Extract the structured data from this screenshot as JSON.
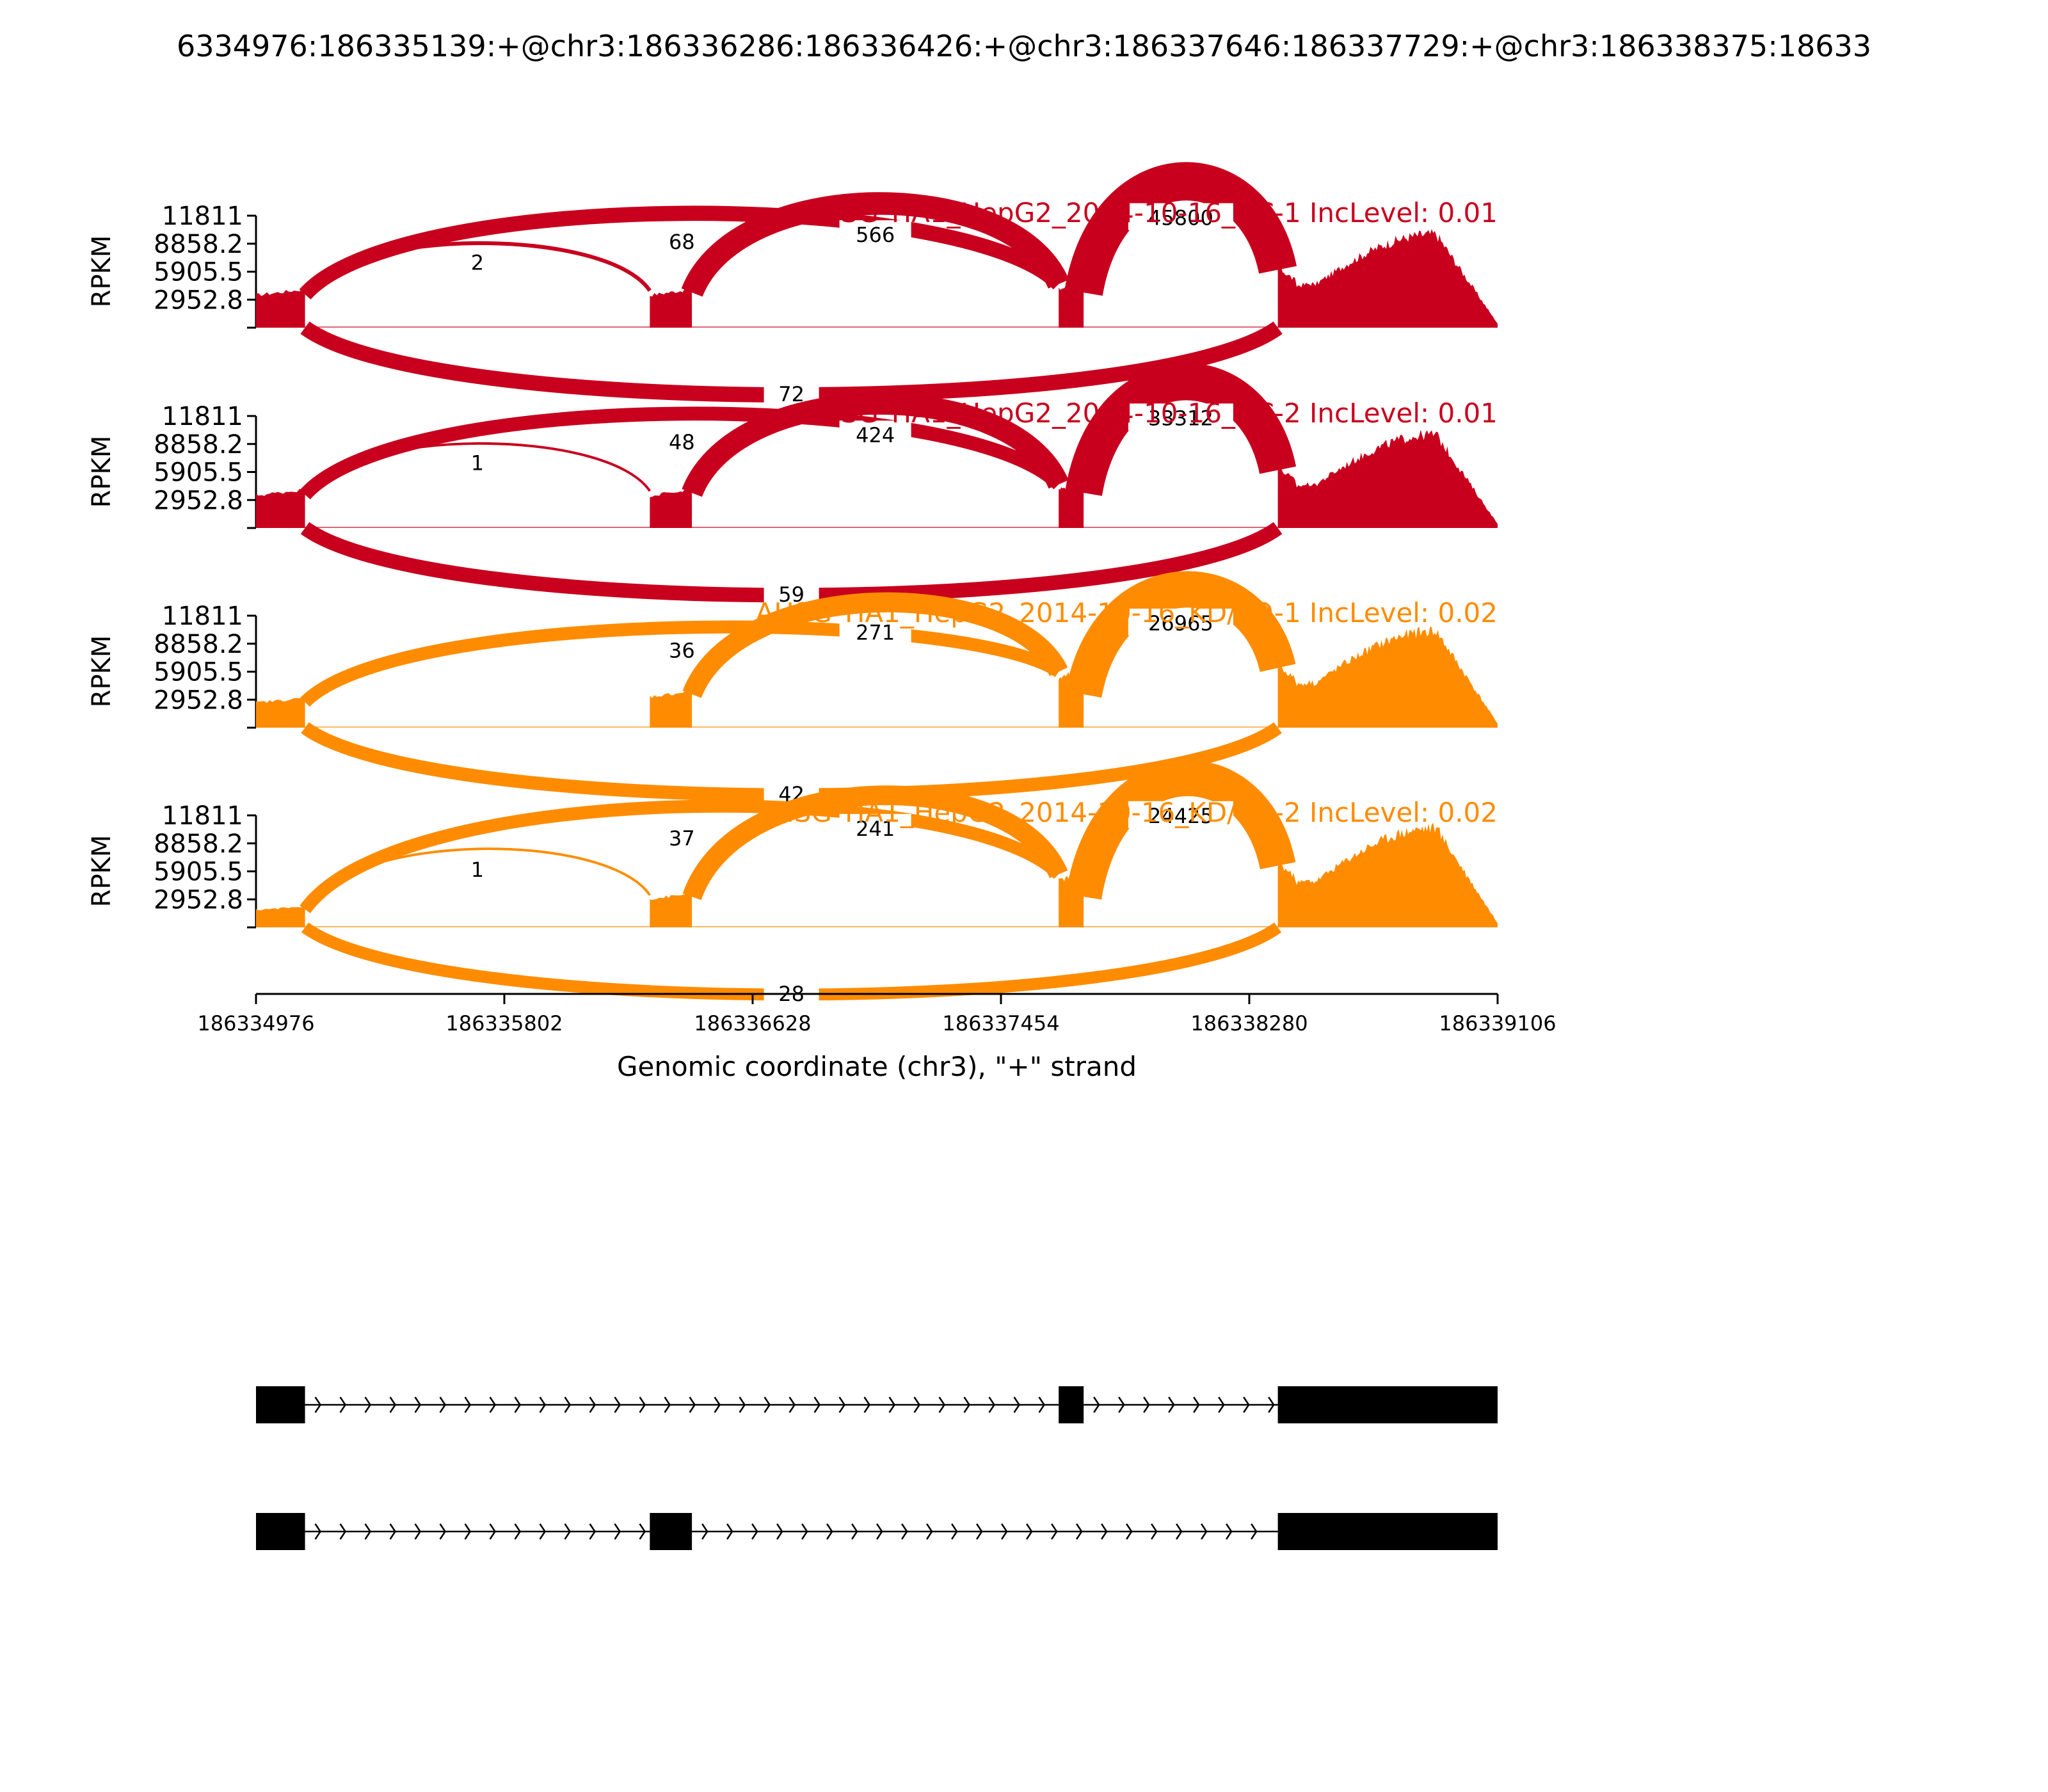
{
  "title": "6334976:186335139:+@chr3:186336286:186336426:+@chr3:186337646:186337729:+@chr3:186338375:18633",
  "chart_data": {
    "type": "sashimi",
    "xlabel": "Genomic coordinate (chr3), \"+\" strand",
    "xlim": [
      186334976,
      186339106
    ],
    "x_ticks": [
      "186334976",
      "186335802",
      "186336628",
      "186337454",
      "186338280",
      "186339106"
    ],
    "ylabel": "RPKM",
    "ylim": [
      0,
      11811
    ],
    "y_ticks": [
      "11811",
      "8858.2",
      "5905.5",
      "2952.8"
    ],
    "exons": [
      {
        "start": 186334976,
        "end": 186335139
      },
      {
        "start": 186336286,
        "end": 186336426
      },
      {
        "start": 186337646,
        "end": 186337729
      },
      {
        "start": 186338375,
        "end": 186339106
      }
    ],
    "series": [
      {
        "name": "AHSG TIA1_HepG2_2014-10-16_NC-1 IncLevel: 0.01",
        "color": "#c8001e",
        "exon_heights": [
          3900,
          3900,
          4600,
          6100
        ],
        "junctions": [
          {
            "from": 186335139,
            "to": 186336286,
            "count": "2",
            "side": "above"
          },
          {
            "from": 186335139,
            "to": 186337646,
            "count": "68",
            "side": "above"
          },
          {
            "from": 186336426,
            "to": 186337646,
            "count": "566",
            "side": "above"
          },
          {
            "from": 186337729,
            "to": 186338375,
            "count": "45800",
            "side": "above"
          },
          {
            "from": 186335139,
            "to": 186338375,
            "count": "72",
            "side": "below"
          }
        ]
      },
      {
        "name": "AHSG TIA1_HepG2_2014-10-16_NC-2 IncLevel: 0.01",
        "color": "#c8001e",
        "exon_heights": [
          3900,
          3900,
          4600,
          6100
        ],
        "junctions": [
          {
            "from": 186335139,
            "to": 186336286,
            "count": "1",
            "side": "above"
          },
          {
            "from": 186335139,
            "to": 186337646,
            "count": "48",
            "side": "above"
          },
          {
            "from": 186336426,
            "to": 186337646,
            "count": "424",
            "side": "above"
          },
          {
            "from": 186337729,
            "to": 186338375,
            "count": "33312",
            "side": "above"
          },
          {
            "from": 186335139,
            "to": 186338375,
            "count": "59",
            "side": "below"
          }
        ]
      },
      {
        "name": "AHSG TIA1_HepG2_2014-10-16_KD/KO-1 IncLevel: 0.02",
        "color": "#ff8c00",
        "exon_heights": [
          3000,
          3700,
          5900,
          6300
        ],
        "junctions": [
          {
            "from": 186335139,
            "to": 186337646,
            "count": "36",
            "side": "above"
          },
          {
            "from": 186336426,
            "to": 186337646,
            "count": "271",
            "side": "above"
          },
          {
            "from": 186337729,
            "to": 186338375,
            "count": "26965",
            "side": "above"
          },
          {
            "from": 186335139,
            "to": 186338375,
            "count": "42",
            "side": "below"
          }
        ]
      },
      {
        "name": "AHSG TIA1_HepG2_2014-10-16_KD/KO-2 IncLevel: 0.02",
        "color": "#ff8c00",
        "exon_heights": [
          2100,
          3400,
          5600,
          6500
        ],
        "junctions": [
          {
            "from": 186335139,
            "to": 186336286,
            "count": "1",
            "side": "above"
          },
          {
            "from": 186335139,
            "to": 186337646,
            "count": "37",
            "side": "above"
          },
          {
            "from": 186336426,
            "to": 186337646,
            "count": "241",
            "side": "above"
          },
          {
            "from": 186337729,
            "to": 186338375,
            "count": "24425",
            "side": "above"
          },
          {
            "from": 186335139,
            "to": 186338375,
            "count": "28",
            "side": "below"
          }
        ]
      }
    ],
    "transcripts": [
      {
        "exons": [
          [
            186334976,
            186335139
          ],
          [
            186337646,
            186337729
          ],
          [
            186338375,
            186339106
          ]
        ]
      },
      {
        "exons": [
          [
            186334976,
            186335139
          ],
          [
            186336286,
            186336426
          ],
          [
            186338375,
            186339106
          ]
        ]
      }
    ]
  }
}
